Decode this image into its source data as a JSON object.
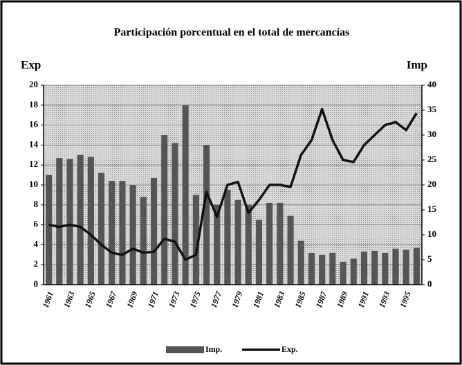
{
  "chart_data": {
    "type": "bar_line",
    "title": "Participación porcentual en el total de mercancías",
    "y_label": "Exp",
    "y2_label": "Imp",
    "categories": [
      "1961",
      null,
      "1963",
      null,
      "1965",
      null,
      "1967",
      null,
      "1969",
      null,
      "1971",
      null,
      "1973",
      null,
      "1975",
      null,
      "1977",
      null,
      "1979",
      null,
      "1981",
      null,
      "1983",
      null,
      "1985",
      null,
      "1987",
      null,
      "1989",
      null,
      "1991",
      null,
      "1993",
      null,
      "1995",
      null
    ],
    "series": [
      {
        "name": "Imp.",
        "type": "bar",
        "axis": "y2",
        "color": "#555555",
        "values": [
          22,
          25.4,
          25.2,
          26,
          25.6,
          22.4,
          20.8,
          20.8,
          20,
          17.6,
          21.4,
          30,
          28.4,
          36,
          18,
          28,
          16,
          19,
          17,
          16,
          13,
          16.4,
          16.4,
          13.8,
          8.8,
          6.4,
          6,
          6.4,
          4.6,
          5.2,
          6.6,
          6.8,
          6.4,
          7.2,
          7,
          7.4
        ]
      },
      {
        "name": "Exp.",
        "type": "line",
        "axis": "y",
        "color": "#111111",
        "values": [
          6,
          5.8,
          6,
          5.8,
          5,
          4,
          3.2,
          3,
          3.6,
          3.2,
          3.3,
          4.6,
          4.3,
          2.5,
          3,
          9.3,
          6.8,
          10,
          10.3,
          7.2,
          8.5,
          10,
          10,
          9.8,
          13,
          14.5,
          17.6,
          14.5,
          12.5,
          12.3,
          14,
          15,
          16,
          16.3,
          15.5,
          17.2
        ]
      }
    ],
    "ylim": [
      0,
      20
    ],
    "yticks": [
      0,
      2,
      4,
      6,
      8,
      10,
      12,
      14,
      16,
      18,
      20
    ],
    "y2lim": [
      0,
      40
    ],
    "y2ticks": [
      0,
      5,
      10,
      15,
      20,
      25,
      30,
      35,
      40
    ],
    "grid": true
  }
}
